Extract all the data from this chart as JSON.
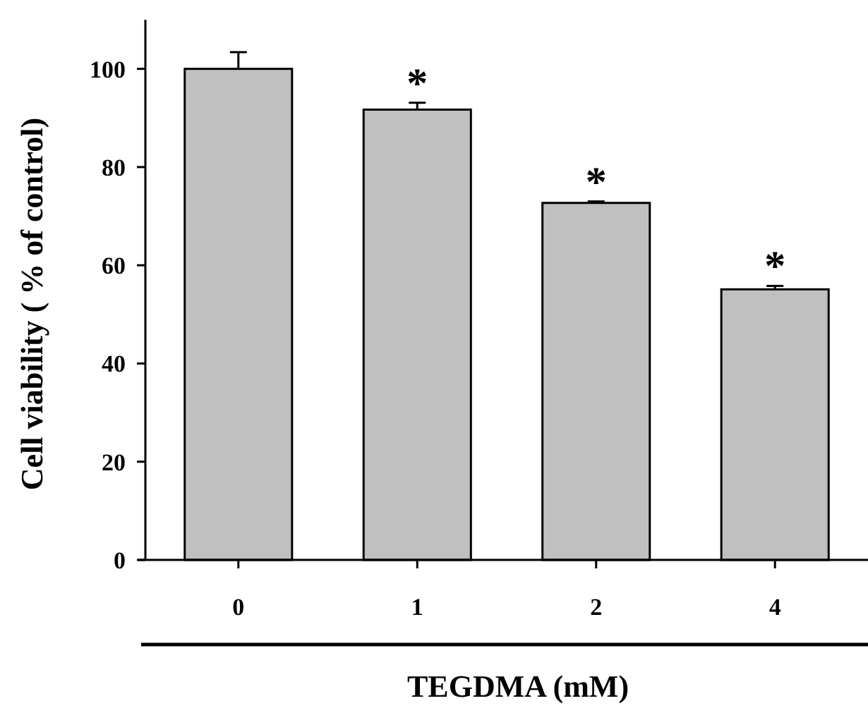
{
  "chart_data": {
    "type": "bar",
    "xlabel": "TEGDMA (mM)",
    "ylabel": "Cell viability ( % of control)",
    "categories": [
      "0",
      "1",
      "2",
      "4"
    ],
    "values": [
      100,
      91.7,
      72.7,
      55.1
    ],
    "errors": [
      [
        100,
        103.4
      ],
      [
        91.7,
        93.1
      ],
      [
        72.7,
        73.0
      ],
      [
        55.1,
        55.8
      ]
    ],
    "color": "#c0c0c0",
    "ylim": [
      0,
      110
    ],
    "yticks": [
      0,
      20,
      40,
      60,
      80,
      100
    ],
    "annotations": [
      {
        "text": "*",
        "x": "1",
        "y": 93.1
      },
      {
        "text": "*",
        "x": "2",
        "y": 73.0
      },
      {
        "text": "*",
        "x": "4",
        "y": 55.8
      }
    ]
  }
}
